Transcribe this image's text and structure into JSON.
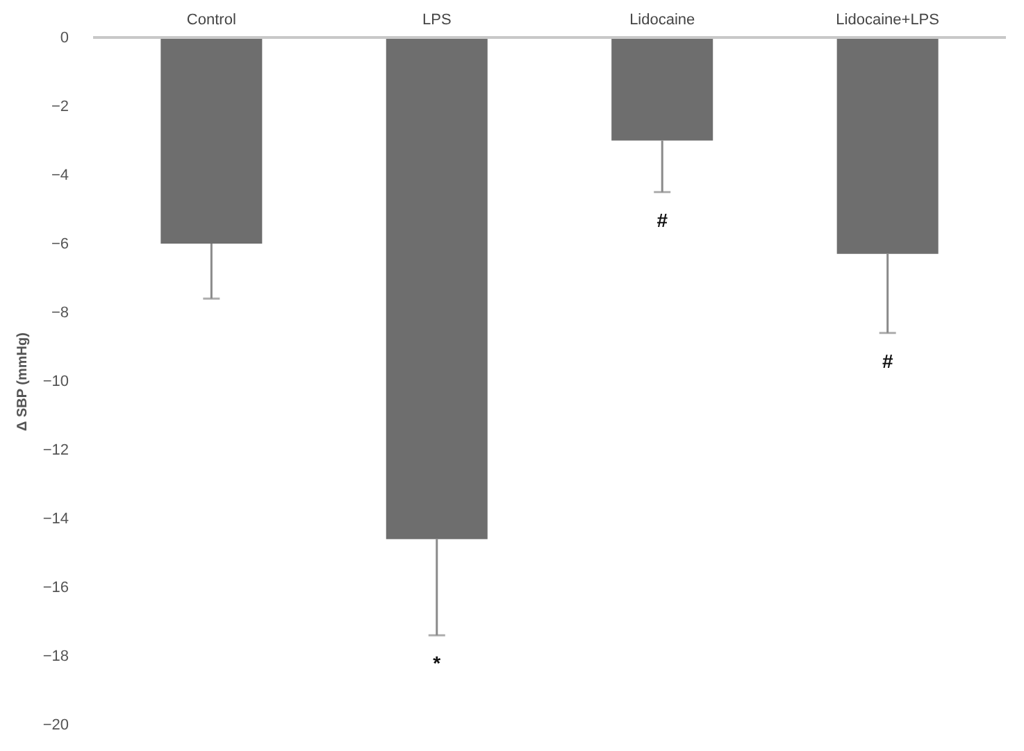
{
  "chart_data": {
    "type": "bar",
    "ylabel": "Δ SBP (mmHg)",
    "categories": [
      "Control",
      "LPS",
      "Lidocaine",
      "Lidocaine+LPS"
    ],
    "values": [
      -6.0,
      -14.6,
      -3.0,
      -6.3
    ],
    "errors": [
      [
        -7.6,
        -6.0
      ],
      [
        -17.4,
        -14.6
      ],
      [
        -4.5,
        -3.0
      ],
      [
        -8.6,
        -6.3
      ]
    ],
    "color": "#6e6e6e",
    "ylim": [
      -20,
      0
    ],
    "yticks": [
      0,
      -2,
      -4,
      -6,
      -8,
      -10,
      -12,
      -14,
      -16,
      -18,
      -20
    ],
    "grid": false,
    "annotations": [
      {
        "text": "*",
        "x": "LPS",
        "y": -17.4
      },
      {
        "text": "#",
        "x": "Lidocaine",
        "y": -4.5
      },
      {
        "text": "#",
        "x": "Lidocaine+LPS",
        "y": -8.6
      }
    ]
  }
}
